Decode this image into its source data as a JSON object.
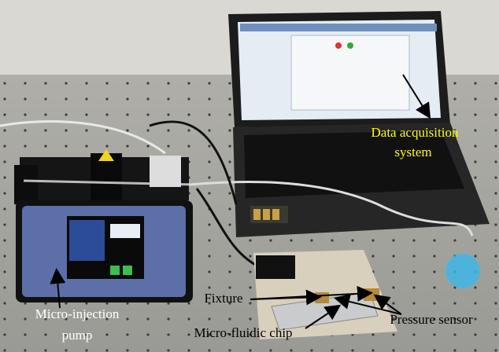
{
  "labels": {
    "data_acquisition": [
      "Data acquisition",
      "system"
    ],
    "pump": [
      "Micro-injection",
      "pump"
    ],
    "fixture": "Fixture",
    "chip": "Micro-fluidic chip",
    "sensor": "Pressure sensor"
  }
}
